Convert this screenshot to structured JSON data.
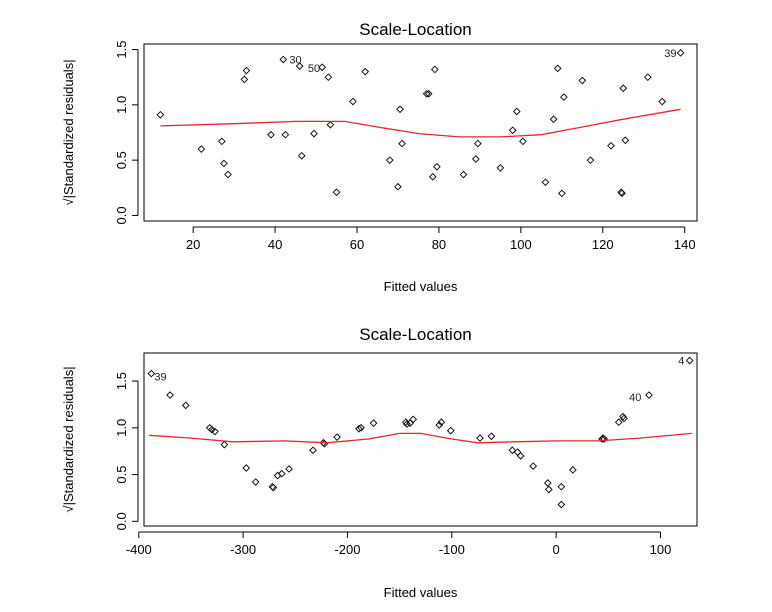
{
  "chart_data": [
    {
      "type": "scatter",
      "title": "Scale-Location",
      "xlabel": "Fitted values",
      "ylabel": "√|Standardized residuals|",
      "xlim": [
        8,
        143
      ],
      "ylim": [
        -0.05,
        1.55
      ],
      "xticks": [
        20,
        40,
        60,
        80,
        100,
        120,
        140
      ],
      "yticks": [
        0.0,
        0.5,
        1.0,
        1.5
      ],
      "xtick_labels": [
        "20",
        "40",
        "60",
        "80",
        "100",
        "120",
        "140"
      ],
      "ytick_labels": [
        "0.0",
        "0.5",
        "1.0",
        "1.5"
      ],
      "points": [
        [
          12,
          0.91
        ],
        [
          22,
          0.6
        ],
        [
          27,
          0.67
        ],
        [
          27.5,
          0.47
        ],
        [
          28.5,
          0.37
        ],
        [
          32.5,
          1.23
        ],
        [
          33,
          1.31
        ],
        [
          39,
          0.73
        ],
        [
          42,
          1.41
        ],
        [
          42.5,
          0.73
        ],
        [
          46,
          1.35
        ],
        [
          46.5,
          0.54
        ],
        [
          49.5,
          0.74
        ],
        [
          51.5,
          1.34
        ],
        [
          53,
          1.25
        ],
        [
          53.5,
          0.82
        ],
        [
          55,
          0.21
        ],
        [
          59,
          1.03
        ],
        [
          62,
          1.3
        ],
        [
          68,
          0.5
        ],
        [
          70,
          0.26
        ],
        [
          70.5,
          0.96
        ],
        [
          71,
          0.65
        ],
        [
          77,
          1.1
        ],
        [
          77.5,
          1.1
        ],
        [
          78.5,
          0.35
        ],
        [
          79,
          1.32
        ],
        [
          79.5,
          0.44
        ],
        [
          86,
          0.37
        ],
        [
          89,
          0.51
        ],
        [
          89.5,
          0.65
        ],
        [
          95,
          0.43
        ],
        [
          98,
          0.77
        ],
        [
          99,
          0.94
        ],
        [
          100.5,
          0.67
        ],
        [
          106,
          0.3
        ],
        [
          108,
          0.87
        ],
        [
          109,
          1.33
        ],
        [
          110,
          0.2
        ],
        [
          110.5,
          1.07
        ],
        [
          115,
          1.22
        ],
        [
          117,
          0.5
        ],
        [
          122,
          0.63
        ],
        [
          124.5,
          0.21
        ],
        [
          124.7,
          0.2
        ],
        [
          125,
          1.15
        ],
        [
          125.5,
          0.68
        ],
        [
          131,
          1.25
        ],
        [
          134.5,
          1.03
        ],
        [
          139,
          1.47
        ]
      ],
      "smooth": [
        [
          12,
          0.81
        ],
        [
          30,
          0.83
        ],
        [
          45,
          0.85
        ],
        [
          57,
          0.85
        ],
        [
          65,
          0.8
        ],
        [
          75,
          0.74
        ],
        [
          85,
          0.71
        ],
        [
          95,
          0.71
        ],
        [
          105,
          0.73
        ],
        [
          115,
          0.8
        ],
        [
          125,
          0.87
        ],
        [
          139,
          0.96
        ]
      ],
      "annotations": [
        {
          "text": "30",
          "x": 43.5,
          "y": 1.41
        },
        {
          "text": "50",
          "x": 48,
          "y": 1.335
        },
        {
          "text": "39",
          "x": 135,
          "y": 1.47
        }
      ]
    },
    {
      "type": "scatter",
      "title": "Scale-Location",
      "xlabel": "Fitted values",
      "ylabel": "√|Standardized residuals|",
      "xlim": [
        -395,
        135
      ],
      "ylim": [
        -0.05,
        1.8
      ],
      "xticks": [
        -400,
        -300,
        -200,
        -100,
        0,
        100
      ],
      "yticks": [
        0.0,
        0.5,
        1.0,
        1.5
      ],
      "xtick_labels": [
        "-400",
        "-300",
        "-200",
        "-100",
        "0",
        "100"
      ],
      "ytick_labels": [
        "0.0",
        "0.5",
        "1.0",
        "1.5"
      ],
      "points": [
        [
          -388,
          1.58
        ],
        [
          -370,
          1.35
        ],
        [
          -355,
          1.24
        ],
        [
          -332,
          1.0
        ],
        [
          -330,
          0.98
        ],
        [
          -327,
          0.96
        ],
        [
          -318,
          0.82
        ],
        [
          -297,
          0.57
        ],
        [
          -288,
          0.42
        ],
        [
          -272,
          0.37
        ],
        [
          -271,
          0.36
        ],
        [
          -267,
          0.49
        ],
        [
          -263,
          0.51
        ],
        [
          -256,
          0.56
        ],
        [
          -233,
          0.76
        ],
        [
          -223,
          0.84
        ],
        [
          -222,
          0.83
        ],
        [
          -210,
          0.9
        ],
        [
          -189,
          0.99
        ],
        [
          -187,
          1.0
        ],
        [
          -175,
          1.05
        ],
        [
          -144,
          1.06
        ],
        [
          -143,
          1.04
        ],
        [
          -140,
          1.05
        ],
        [
          -137,
          1.09
        ],
        [
          -112,
          1.03
        ],
        [
          -110,
          1.06
        ],
        [
          -101,
          0.97
        ],
        [
          -73,
          0.89
        ],
        [
          -62,
          0.91
        ],
        [
          -42,
          0.76
        ],
        [
          -37,
          0.74
        ],
        [
          -34,
          0.7
        ],
        [
          -22,
          0.59
        ],
        [
          -8,
          0.41
        ],
        [
          -7,
          0.34
        ],
        [
          5,
          0.18
        ],
        [
          5,
          0.37
        ],
        [
          16,
          0.55
        ],
        [
          44,
          0.88
        ],
        [
          45,
          0.89
        ],
        [
          46,
          0.88
        ],
        [
          60,
          1.06
        ],
        [
          64,
          1.12
        ],
        [
          65,
          1.1
        ],
        [
          89,
          1.35
        ],
        [
          128,
          1.72
        ]
      ],
      "smooth": [
        [
          -390,
          0.92
        ],
        [
          -350,
          0.89
        ],
        [
          -310,
          0.85
        ],
        [
          -260,
          0.86
        ],
        [
          -220,
          0.84
        ],
        [
          -180,
          0.88
        ],
        [
          -150,
          0.94
        ],
        [
          -130,
          0.94
        ],
        [
          -100,
          0.88
        ],
        [
          -75,
          0.84
        ],
        [
          -40,
          0.85
        ],
        [
          0,
          0.86
        ],
        [
          40,
          0.86
        ],
        [
          80,
          0.89
        ],
        [
          130,
          0.94
        ]
      ],
      "annotations": [
        {
          "text": "39",
          "x": -385,
          "y": 1.55
        },
        {
          "text": "40",
          "x": 70,
          "y": 1.33
        },
        {
          "text": "4",
          "x": 117,
          "y": 1.72
        }
      ]
    }
  ]
}
